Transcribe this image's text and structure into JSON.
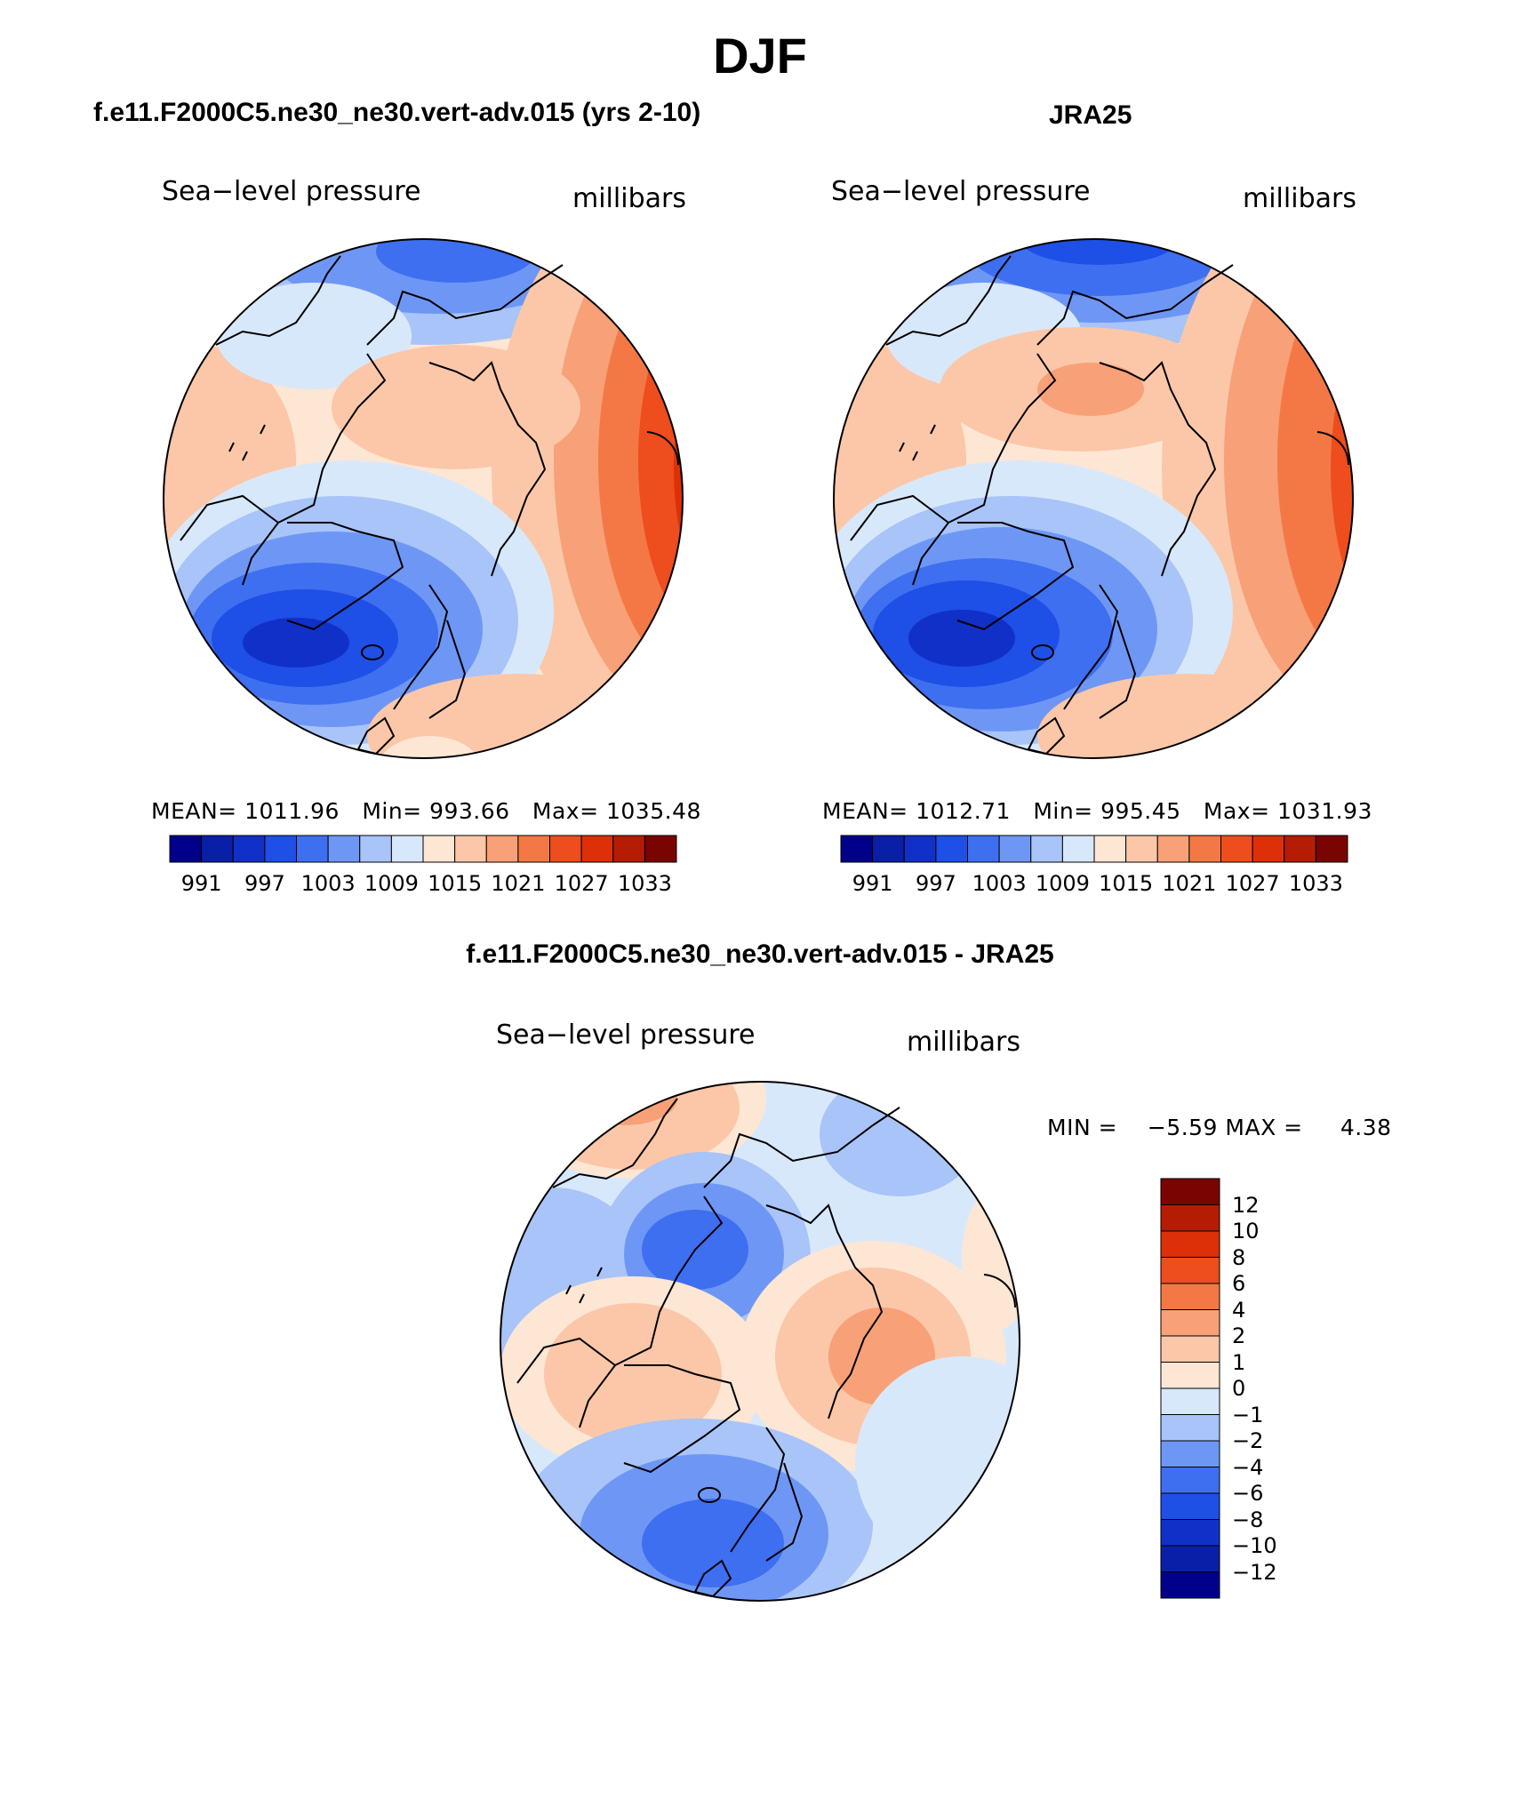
{
  "title": "DJF",
  "panels": [
    {
      "id": "model",
      "title": "f.e11.F2000C5.ne30_ne30.vert-adv.015 (yrs 2-10)",
      "variable": "Sea−level pressure",
      "units": "millibars",
      "stats": {
        "mean_label": "MEAN=",
        "mean": "1011.96",
        "min_label": "Min=",
        "min": "993.66",
        "max_label": "Max=",
        "max": "1035.48"
      }
    },
    {
      "id": "obs",
      "title": "JRA25",
      "variable": "Sea−level pressure",
      "units": "millibars",
      "stats": {
        "mean_label": "MEAN=",
        "mean": "1012.71",
        "min_label": "Min=",
        "min": "995.45",
        "max_label": "Max=",
        "max": "1031.93"
      }
    },
    {
      "id": "diff",
      "title": "f.e11.F2000C5.ne30_ne30.vert-adv.015 - JRA25",
      "variable": "Sea−level pressure",
      "units": "millibars",
      "stats": {
        "min_label": "MIN =",
        "min": "−5.59",
        "max_label": "MAX =",
        "max": "4.38"
      }
    }
  ],
  "colorbar_main": {
    "colors": [
      "#00008b",
      "#0a1fa8",
      "#1030c8",
      "#1e4fe6",
      "#3e6ff0",
      "#6e97f5",
      "#a8c4f8",
      "#d8e8fb",
      "#fde6d4",
      "#fbc7a8",
      "#f8a077",
      "#f47845",
      "#ee4d1d",
      "#dd3008",
      "#b51c04",
      "#7a0402"
    ],
    "tick_labels": [
      "991",
      "997",
      "1003",
      "1009",
      "1015",
      "1021",
      "1027",
      "1033"
    ]
  },
  "colorbar_diff": {
    "colors": [
      "#7a0402",
      "#b51c04",
      "#dd3008",
      "#ee4d1d",
      "#f47845",
      "#f8a077",
      "#fbc7a8",
      "#fde6d4",
      "#d8e8fb",
      "#a8c4f8",
      "#6e97f5",
      "#3e6ff0",
      "#1e4fe6",
      "#1030c8",
      "#0a1fa8",
      "#00008b"
    ],
    "tick_labels": [
      "12",
      "10",
      "8",
      "6",
      "4",
      "2",
      "1",
      "0",
      "−1",
      "−2",
      "−4",
      "−6",
      "−8",
      "−10",
      "−12"
    ]
  },
  "chart_data": [
    {
      "type": "heatmap",
      "title": "f.e11.F2000C5.ne30_ne30.vert-adv.015 (yrs 2-10)",
      "variable": "Sea-level pressure",
      "units": "millibars",
      "mean": 1011.96,
      "min": 993.66,
      "max": 1035.48,
      "levels": [
        991,
        997,
        1003,
        1009,
        1015,
        1021,
        1027,
        1033
      ]
    },
    {
      "type": "heatmap",
      "title": "JRA25",
      "variable": "Sea-level pressure",
      "units": "millibars",
      "mean": 1012.71,
      "min": 995.45,
      "max": 1031.93,
      "levels": [
        991,
        997,
        1003,
        1009,
        1015,
        1021,
        1027,
        1033
      ]
    },
    {
      "type": "heatmap",
      "title": "f.e11.F2000C5.ne30_ne30.vert-adv.015 - JRA25",
      "variable": "Sea-level pressure",
      "units": "millibars",
      "min": -5.59,
      "max": 4.38,
      "levels": [
        12,
        10,
        8,
        6,
        4,
        2,
        1,
        0,
        -1,
        -2,
        -4,
        -6,
        -8,
        -10,
        -12
      ]
    }
  ]
}
